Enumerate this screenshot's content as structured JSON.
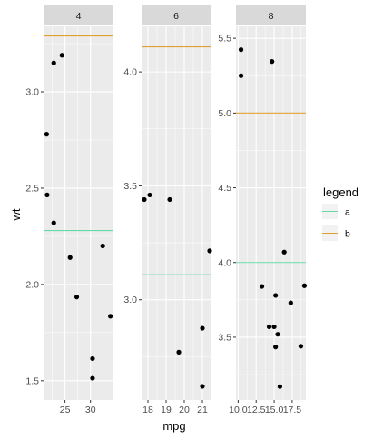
{
  "chart_data": {
    "type": "scatter",
    "facet_variable": "cyl",
    "xlabel": "mpg",
    "ylabel": "wt",
    "legend": {
      "title": "legend",
      "placement": "right",
      "entries": [
        {
          "label": "a",
          "color": "#66d9a8"
        },
        {
          "label": "b",
          "color": "#e0a030"
        }
      ]
    },
    "colors": {
      "panel_bg": "#ebebeb",
      "grid": "#ffffff",
      "strip_bg": "#d9d9d9",
      "point": "#000000"
    },
    "panels": [
      {
        "strip": "4",
        "xlim": [
          20.8,
          34.5
        ],
        "ylim": [
          1.4,
          3.34
        ],
        "x_ticks": [
          25,
          30
        ],
        "x_tick_labels": [
          "25",
          "30"
        ],
        "y_ticks": [
          1.5,
          2.0,
          2.5,
          3.0
        ],
        "y_tick_labels": [
          "1.5",
          "2.0",
          "2.5",
          "3.0"
        ],
        "points": [
          {
            "x": 22.8,
            "y": 2.32
          },
          {
            "x": 24.4,
            "y": 3.19
          },
          {
            "x": 22.8,
            "y": 3.15
          },
          {
            "x": 32.4,
            "y": 2.2
          },
          {
            "x": 30.4,
            "y": 1.615
          },
          {
            "x": 33.9,
            "y": 1.835
          },
          {
            "x": 21.5,
            "y": 2.465
          },
          {
            "x": 27.3,
            "y": 1.935
          },
          {
            "x": 26.0,
            "y": 2.14
          },
          {
            "x": 30.4,
            "y": 1.513
          },
          {
            "x": 21.4,
            "y": 2.78
          }
        ],
        "hlines": [
          {
            "legend": "a",
            "y": 2.28
          },
          {
            "legend": "b",
            "y": 3.29
          }
        ]
      },
      {
        "strip": "6",
        "xlim": [
          17.65,
          21.45
        ],
        "ylim": [
          2.56,
          4.2
        ],
        "x_ticks": [
          18,
          19,
          20,
          21
        ],
        "x_tick_labels": [
          "18",
          "19",
          "20",
          "21"
        ],
        "y_ticks": [
          3.0,
          3.5,
          4.0
        ],
        "y_tick_labels": [
          "3.0",
          "3.5",
          "4.0"
        ],
        "points": [
          {
            "x": 21.0,
            "y": 2.62
          },
          {
            "x": 21.0,
            "y": 2.875
          },
          {
            "x": 21.4,
            "y": 3.215
          },
          {
            "x": 18.1,
            "y": 3.46
          },
          {
            "x": 19.2,
            "y": 3.44
          },
          {
            "x": 17.8,
            "y": 3.44
          },
          {
            "x": 19.7,
            "y": 2.77
          }
        ],
        "hlines": [
          {
            "legend": "a",
            "y": 3.11
          },
          {
            "legend": "b",
            "y": 4.11
          }
        ]
      },
      {
        "strip": "8",
        "xlim": [
          9.7,
          19.4
        ],
        "ylim": [
          3.08,
          5.58
        ],
        "x_ticks": [
          10.0,
          12.5,
          15.0,
          17.5
        ],
        "x_tick_labels": [
          "10.0",
          "12.5",
          "15.0",
          "17.5"
        ],
        "y_ticks": [
          3.5,
          4.0,
          4.5,
          5.0,
          5.5
        ],
        "y_tick_labels": [
          "3.5",
          "4.0",
          "4.5",
          "5.0",
          "5.5"
        ],
        "points": [
          {
            "x": 18.7,
            "y": 3.44
          },
          {
            "x": 14.3,
            "y": 3.57
          },
          {
            "x": 16.4,
            "y": 4.07
          },
          {
            "x": 17.3,
            "y": 3.73
          },
          {
            "x": 15.2,
            "y": 3.78
          },
          {
            "x": 10.4,
            "y": 5.25
          },
          {
            "x": 10.4,
            "y": 5.424
          },
          {
            "x": 14.7,
            "y": 5.345
          },
          {
            "x": 15.5,
            "y": 3.52
          },
          {
            "x": 15.2,
            "y": 3.435
          },
          {
            "x": 13.3,
            "y": 3.84
          },
          {
            "x": 19.2,
            "y": 3.845
          },
          {
            "x": 15.8,
            "y": 3.17
          },
          {
            "x": 15.0,
            "y": 3.57
          }
        ],
        "hlines": [
          {
            "legend": "a",
            "y": 4.0
          },
          {
            "legend": "b",
            "y": 5.0
          }
        ]
      }
    ]
  }
}
